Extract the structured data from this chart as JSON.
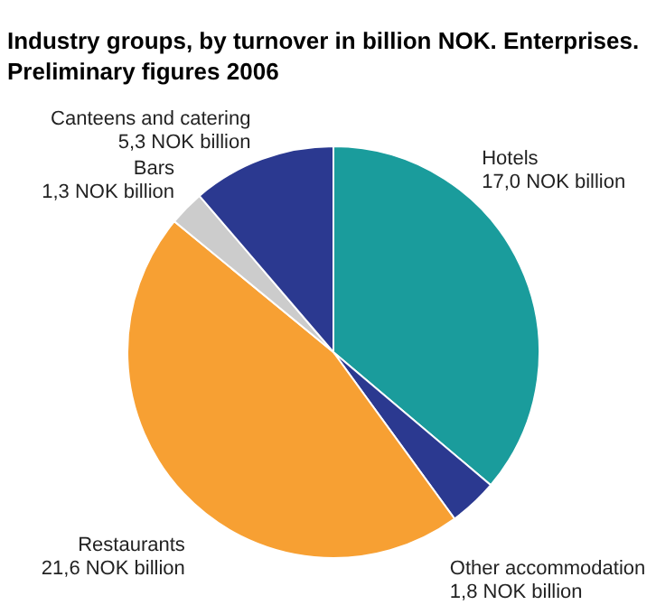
{
  "chart_data": {
    "type": "pie",
    "title": "Industry groups, by turnover in billion NOK. Enterprises. Preliminary figures 2006",
    "categories": [
      "Hotels",
      "Other accommodation",
      "Restaurants",
      "Bars",
      "Canteens and catering"
    ],
    "values": [
      17.0,
      1.8,
      21.6,
      1.3,
      5.3
    ],
    "value_labels": [
      "17,0 NOK billion",
      "1,8 NOK billion",
      "21,6 NOK billion",
      "1,3 NOK billion",
      "5,3 NOK billion"
    ],
    "colors": [
      "#1a9c9c",
      "#2b3990",
      "#f7a033",
      "#cccccc",
      "#2b3990"
    ]
  }
}
